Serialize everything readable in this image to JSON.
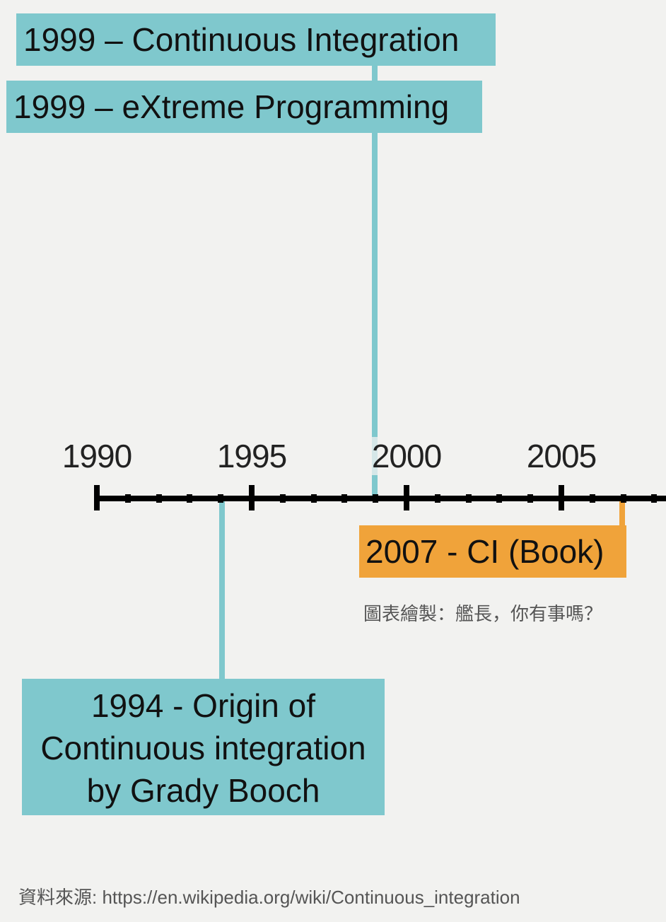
{
  "colors": {
    "teal": "#7fc8cd",
    "orange": "#f0a33a",
    "axis": "#000000",
    "background": "#f2f2f0"
  },
  "axis": {
    "start": 1990,
    "end": 2008,
    "major_step": 5,
    "minor_step": 1,
    "labels": [
      "1990",
      "1995",
      "2000",
      "2005"
    ]
  },
  "events": [
    {
      "year": 1999,
      "text": "1999 – Continuous Integration",
      "color": "teal"
    },
    {
      "year": 1999,
      "text": "1999 – eXtreme Programming",
      "color": "teal"
    },
    {
      "year": 1994,
      "lines": [
        "1994 - Origin of",
        "Continuous integration",
        "by Grady Booch"
      ],
      "color": "teal"
    },
    {
      "year": 2007,
      "text": "2007 - CI (Book)",
      "color": "orange"
    }
  ],
  "credit": "圖表繪製：艦長，你有事嗎？",
  "source": "資料來源: https://en.wikipedia.org/wiki/Continuous_integration"
}
